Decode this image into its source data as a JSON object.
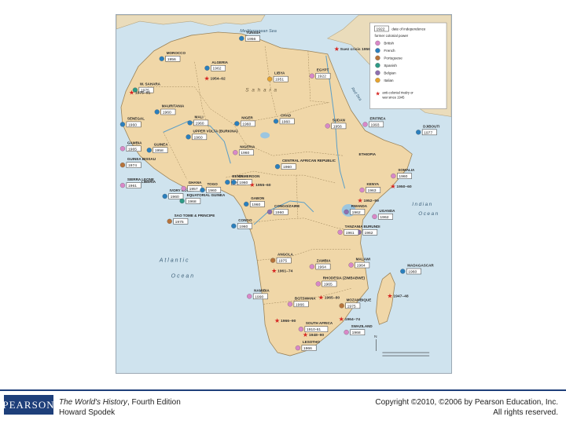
{
  "seas": [
    {
      "id": "med",
      "text": "Mediterranean Sea"
    },
    {
      "id": "atl1",
      "text": "Atlantic"
    },
    {
      "id": "atl2",
      "text": "Ocean"
    },
    {
      "id": "ind1",
      "text": "Indian"
    },
    {
      "id": "ind2",
      "text": "Ocean"
    },
    {
      "id": "red",
      "text": "Red Sea"
    },
    {
      "id": "sahara",
      "text": "S a h a r a"
    }
  ],
  "colonial_colors": {
    "British": "#d988c8",
    "French": "#2a7fbd",
    "Portuguese": "#b7733a",
    "Spanish": "#2f9a86",
    "Belgian": "#8e6fb0",
    "Italian": "#e6a32e",
    "war": "#d62420"
  },
  "countries": [
    {
      "name": "TUNISIA",
      "year": "1956",
      "power": "French"
    },
    {
      "name": "MOROCCO",
      "year": "1956",
      "power": "French"
    },
    {
      "name": "ALGERIA",
      "year": "1962",
      "power": "French"
    },
    {
      "name": "LIBYA",
      "year": "1951",
      "power": "Italian"
    },
    {
      "name": "EGYPT",
      "year": "1922",
      "power": "British"
    },
    {
      "name": "W. SAHARA",
      "year": "1975",
      "power": "Spanish"
    },
    {
      "name": "MAURITANIA",
      "year": "1960",
      "power": "French"
    },
    {
      "name": "MALI",
      "year": "1960",
      "power": "French"
    },
    {
      "name": "NIGER",
      "year": "1960",
      "power": "French"
    },
    {
      "name": "CHAD",
      "year": "1960",
      "power": "French"
    },
    {
      "name": "SUDAN",
      "year": "1956",
      "power": "British"
    },
    {
      "name": "ERITREA",
      "year": "1993",
      "power": "British"
    },
    {
      "name": "DJIBOUTI",
      "year": "1977",
      "power": "French"
    },
    {
      "name": "SENEGAL",
      "year": "1960",
      "power": "French"
    },
    {
      "name": "GAMBIA",
      "year": "1965",
      "power": "British"
    },
    {
      "name": "GUINEA",
      "year": "1958",
      "power": "French"
    },
    {
      "name": "GUINEA BISSAU",
      "year": "1974",
      "power": "Portuguese"
    },
    {
      "name": "SIERRA LEONE",
      "year": "1961",
      "power": "British"
    },
    {
      "name": "LIBERIA",
      "year": "",
      "power": ""
    },
    {
      "name": "UPPER VOLTA (BURKINA)",
      "year": "1960",
      "power": "French"
    },
    {
      "name": "NIGERIA",
      "year": "1960",
      "power": "British"
    },
    {
      "name": "CENTRAL AFRICAN REPUBLIC",
      "year": "1960",
      "power": "French"
    },
    {
      "name": "ETHIOPIA",
      "year": "",
      "power": ""
    },
    {
      "name": "SOMALIA",
      "year": "1960",
      "power": "British"
    },
    {
      "name": "IVORY COAST",
      "year": "1960",
      "power": "French"
    },
    {
      "name": "GHANA",
      "year": "1957",
      "power": "British"
    },
    {
      "name": "TOGO",
      "year": "1960",
      "power": "French"
    },
    {
      "name": "BENIN",
      "year": "1960",
      "power": "French"
    },
    {
      "name": "CAMEROON",
      "year": "1960",
      "power": "French"
    },
    {
      "name": "EQUATORIAL GUINEA",
      "year": "1968",
      "power": "Spanish"
    },
    {
      "name": "SAO TOME & PRINCIPE",
      "year": "1975",
      "power": "Portuguese"
    },
    {
      "name": "GABON",
      "year": "1960",
      "power": "French"
    },
    {
      "name": "CONGO",
      "year": "1960",
      "power": "French"
    },
    {
      "name": "CONGO/ZAIRE",
      "year": "1960",
      "power": "Belgian"
    },
    {
      "name": "RWANDA",
      "year": "1962",
      "power": "Belgian"
    },
    {
      "name": "BURUNDI",
      "year": "1962",
      "power": "Belgian"
    },
    {
      "name": "UGANDA",
      "year": "1962",
      "power": "British"
    },
    {
      "name": "KENYA",
      "year": "1963",
      "power": "British"
    },
    {
      "name": "TANZANIA",
      "year": "1961",
      "power": "British"
    },
    {
      "name": "ANGOLA",
      "year": "1975",
      "power": "Portuguese"
    },
    {
      "name": "ZAMBIA",
      "year": "1964",
      "power": "British"
    },
    {
      "name": "MALAWI",
      "year": "1964",
      "power": "British"
    },
    {
      "name": "RHODESIA (ZIMBABWE)",
      "year": "1965",
      "power": "British"
    },
    {
      "name": "MOZAMBIQUE",
      "year": "1975",
      "power": "Portuguese"
    },
    {
      "name": "MADAGASCAR",
      "year": "1960",
      "power": "French"
    },
    {
      "name": "NAMIBIA",
      "year": "1990",
      "power": "British"
    },
    {
      "name": "BOTSWANA",
      "year": "1966",
      "power": "British"
    },
    {
      "name": "SOUTH AFRICA",
      "year": "1910-61",
      "power": "British"
    },
    {
      "name": "SWAZILAND",
      "year": "1968",
      "power": "British"
    },
    {
      "name": "LESOTHO",
      "year": "1966",
      "power": "British"
    }
  ],
  "wars": [
    {
      "id": "algeria",
      "text": "1954–62"
    },
    {
      "id": "wsahara",
      "text": "1975–91"
    },
    {
      "id": "suez",
      "text": "Suez crisis 1956"
    },
    {
      "id": "cameroon",
      "text": "1955–60"
    },
    {
      "id": "somalia",
      "text": "1950–60"
    },
    {
      "id": "kenya",
      "text": "1952–59"
    },
    {
      "id": "angola",
      "text": "1961–74"
    },
    {
      "id": "rhodesia",
      "text": "1965–80"
    },
    {
      "id": "mozambique",
      "text": "1964–74"
    },
    {
      "id": "namibia",
      "text": "1966–90"
    },
    {
      "id": "madagascar",
      "text": "1947–48"
    },
    {
      "id": "southafrica",
      "text": "1948–90"
    }
  ],
  "legend": {
    "year_sample": "1922",
    "year_desc": "date of independence",
    "powers_title": "former colonial power",
    "powers": [
      "British",
      "French",
      "Portuguese",
      "Spanish",
      "Belgian",
      "Italian"
    ],
    "war_line1": "anti-colonial rivalry or",
    "war_line2": "war since 1945"
  },
  "footer": {
    "logo": "PEARSON",
    "book_title": "The World's History",
    "book_edition": ", Fourth Edition",
    "author": "Howard Spodek",
    "copyright": "Copyright ©2010, ©2006 by Pearson Education, Inc.",
    "rights": "All rights reserved."
  }
}
